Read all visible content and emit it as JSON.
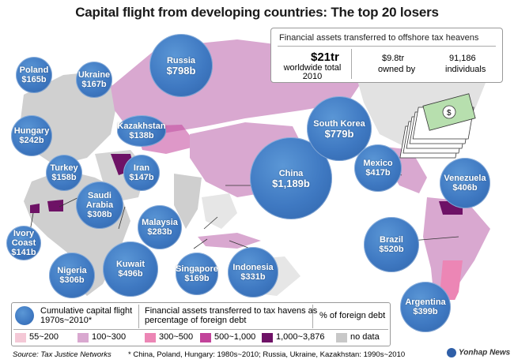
{
  "title": "Capital flight from developing countries: The top 20 losers",
  "infobox": {
    "header": "Financial assets transferred to offshore tax heavens",
    "total_value": "$21tr",
    "total_label_1": "worldwide total",
    "total_label_2": "2010",
    "owned_value": "$9.8tr",
    "owned_label": "owned by",
    "individuals_value": "91,186",
    "individuals_label": "individuals"
  },
  "countries": [
    {
      "name": "Russia",
      "value": "$798b"
    },
    {
      "name": "China",
      "value": "$1,189b"
    },
    {
      "name": "South Korea",
      "value": "$779b"
    },
    {
      "name": "Brazil",
      "value": "$520b"
    },
    {
      "name": "Kuwait",
      "value": "$496b"
    },
    {
      "name": "Mexico",
      "value": "$417b"
    },
    {
      "name": "Venezuela",
      "value": "$406b"
    },
    {
      "name": "Argentina",
      "value": "$399b"
    },
    {
      "name": "Indonesia",
      "value": "$331b"
    },
    {
      "name": "Saudi Arabia",
      "value": "$308b"
    },
    {
      "name": "Nigeria",
      "value": "$306b"
    },
    {
      "name": "Malaysia",
      "value": "$283b"
    },
    {
      "name": "Hungary",
      "value": "$242b"
    },
    {
      "name": "Singapore",
      "value": "$169b"
    },
    {
      "name": "Ukraine",
      "value": "$167b"
    },
    {
      "name": "Poland",
      "value": "$165b"
    },
    {
      "name": "Turkey",
      "value": "$158b"
    },
    {
      "name": "Iran",
      "value": "$147b"
    },
    {
      "name": "Ivory Coast",
      "value": "$141b"
    },
    {
      "name": "Kazakhstan",
      "value": "$138b"
    }
  ],
  "legend": {
    "bubble_label": "Cumulative capital flight 1970s~2010*",
    "fill_label": "Financial assets transferred to tax havens as percentage of foreign debt",
    "pct_label": "% of foreign debt",
    "classes": [
      {
        "label": "55~200",
        "color": "#f4c8d6"
      },
      {
        "label": "100~300",
        "color": "#d9a8d0"
      },
      {
        "label": "300~500",
        "color": "#ec86b5"
      },
      {
        "label": "500~1,000",
        "color": "#c2439a"
      },
      {
        "label": "1,000~3,876",
        "color": "#6e1266"
      },
      {
        "label": "no data",
        "color": "#c8c8c8"
      }
    ]
  },
  "source": "Source: Tax Justice Networks",
  "footnote": "* China, Poland, Hungary: 1980s~2010; Russia, Ukraine, Kazakhstan: 1990s~2010",
  "credit": "Yonhap News"
}
